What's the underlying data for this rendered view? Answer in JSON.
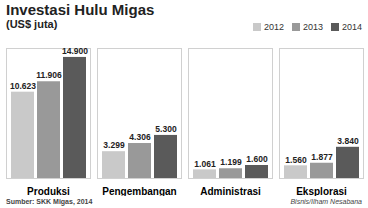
{
  "chart_data": {
    "type": "bar",
    "title": "Investasi Hulu Migas",
    "subtitle": "(US$ juta)",
    "categories": [
      "Produksi",
      "Pengembangan",
      "Administrasi",
      "Eksplorasi"
    ],
    "series": [
      {
        "name": "2012",
        "color": "#c9c9c9",
        "values": [
          10623,
          3299,
          1061,
          1560
        ],
        "value_labels": [
          "10.623",
          "3.299",
          "1.061",
          "1.560"
        ]
      },
      {
        "name": "2013",
        "color": "#999999",
        "values": [
          11906,
          4306,
          1199,
          1877
        ],
        "value_labels": [
          "11.906",
          "4.306",
          "1.199",
          "1.877"
        ]
      },
      {
        "name": "2014",
        "color": "#5a5a5a",
        "values": [
          14900,
          5300,
          1600,
          3840
        ],
        "value_labels": [
          "14.900",
          "5.300",
          "1.600",
          "3.840"
        ]
      }
    ],
    "ylim": [
      0,
      16000
    ],
    "yticks": [],
    "tick_labels": "x",
    "data_labels": true,
    "legend": "top-right",
    "source": "Sumber: SKK Migas, 2014",
    "credit": "Bisnis/Ilham Nesabana"
  }
}
